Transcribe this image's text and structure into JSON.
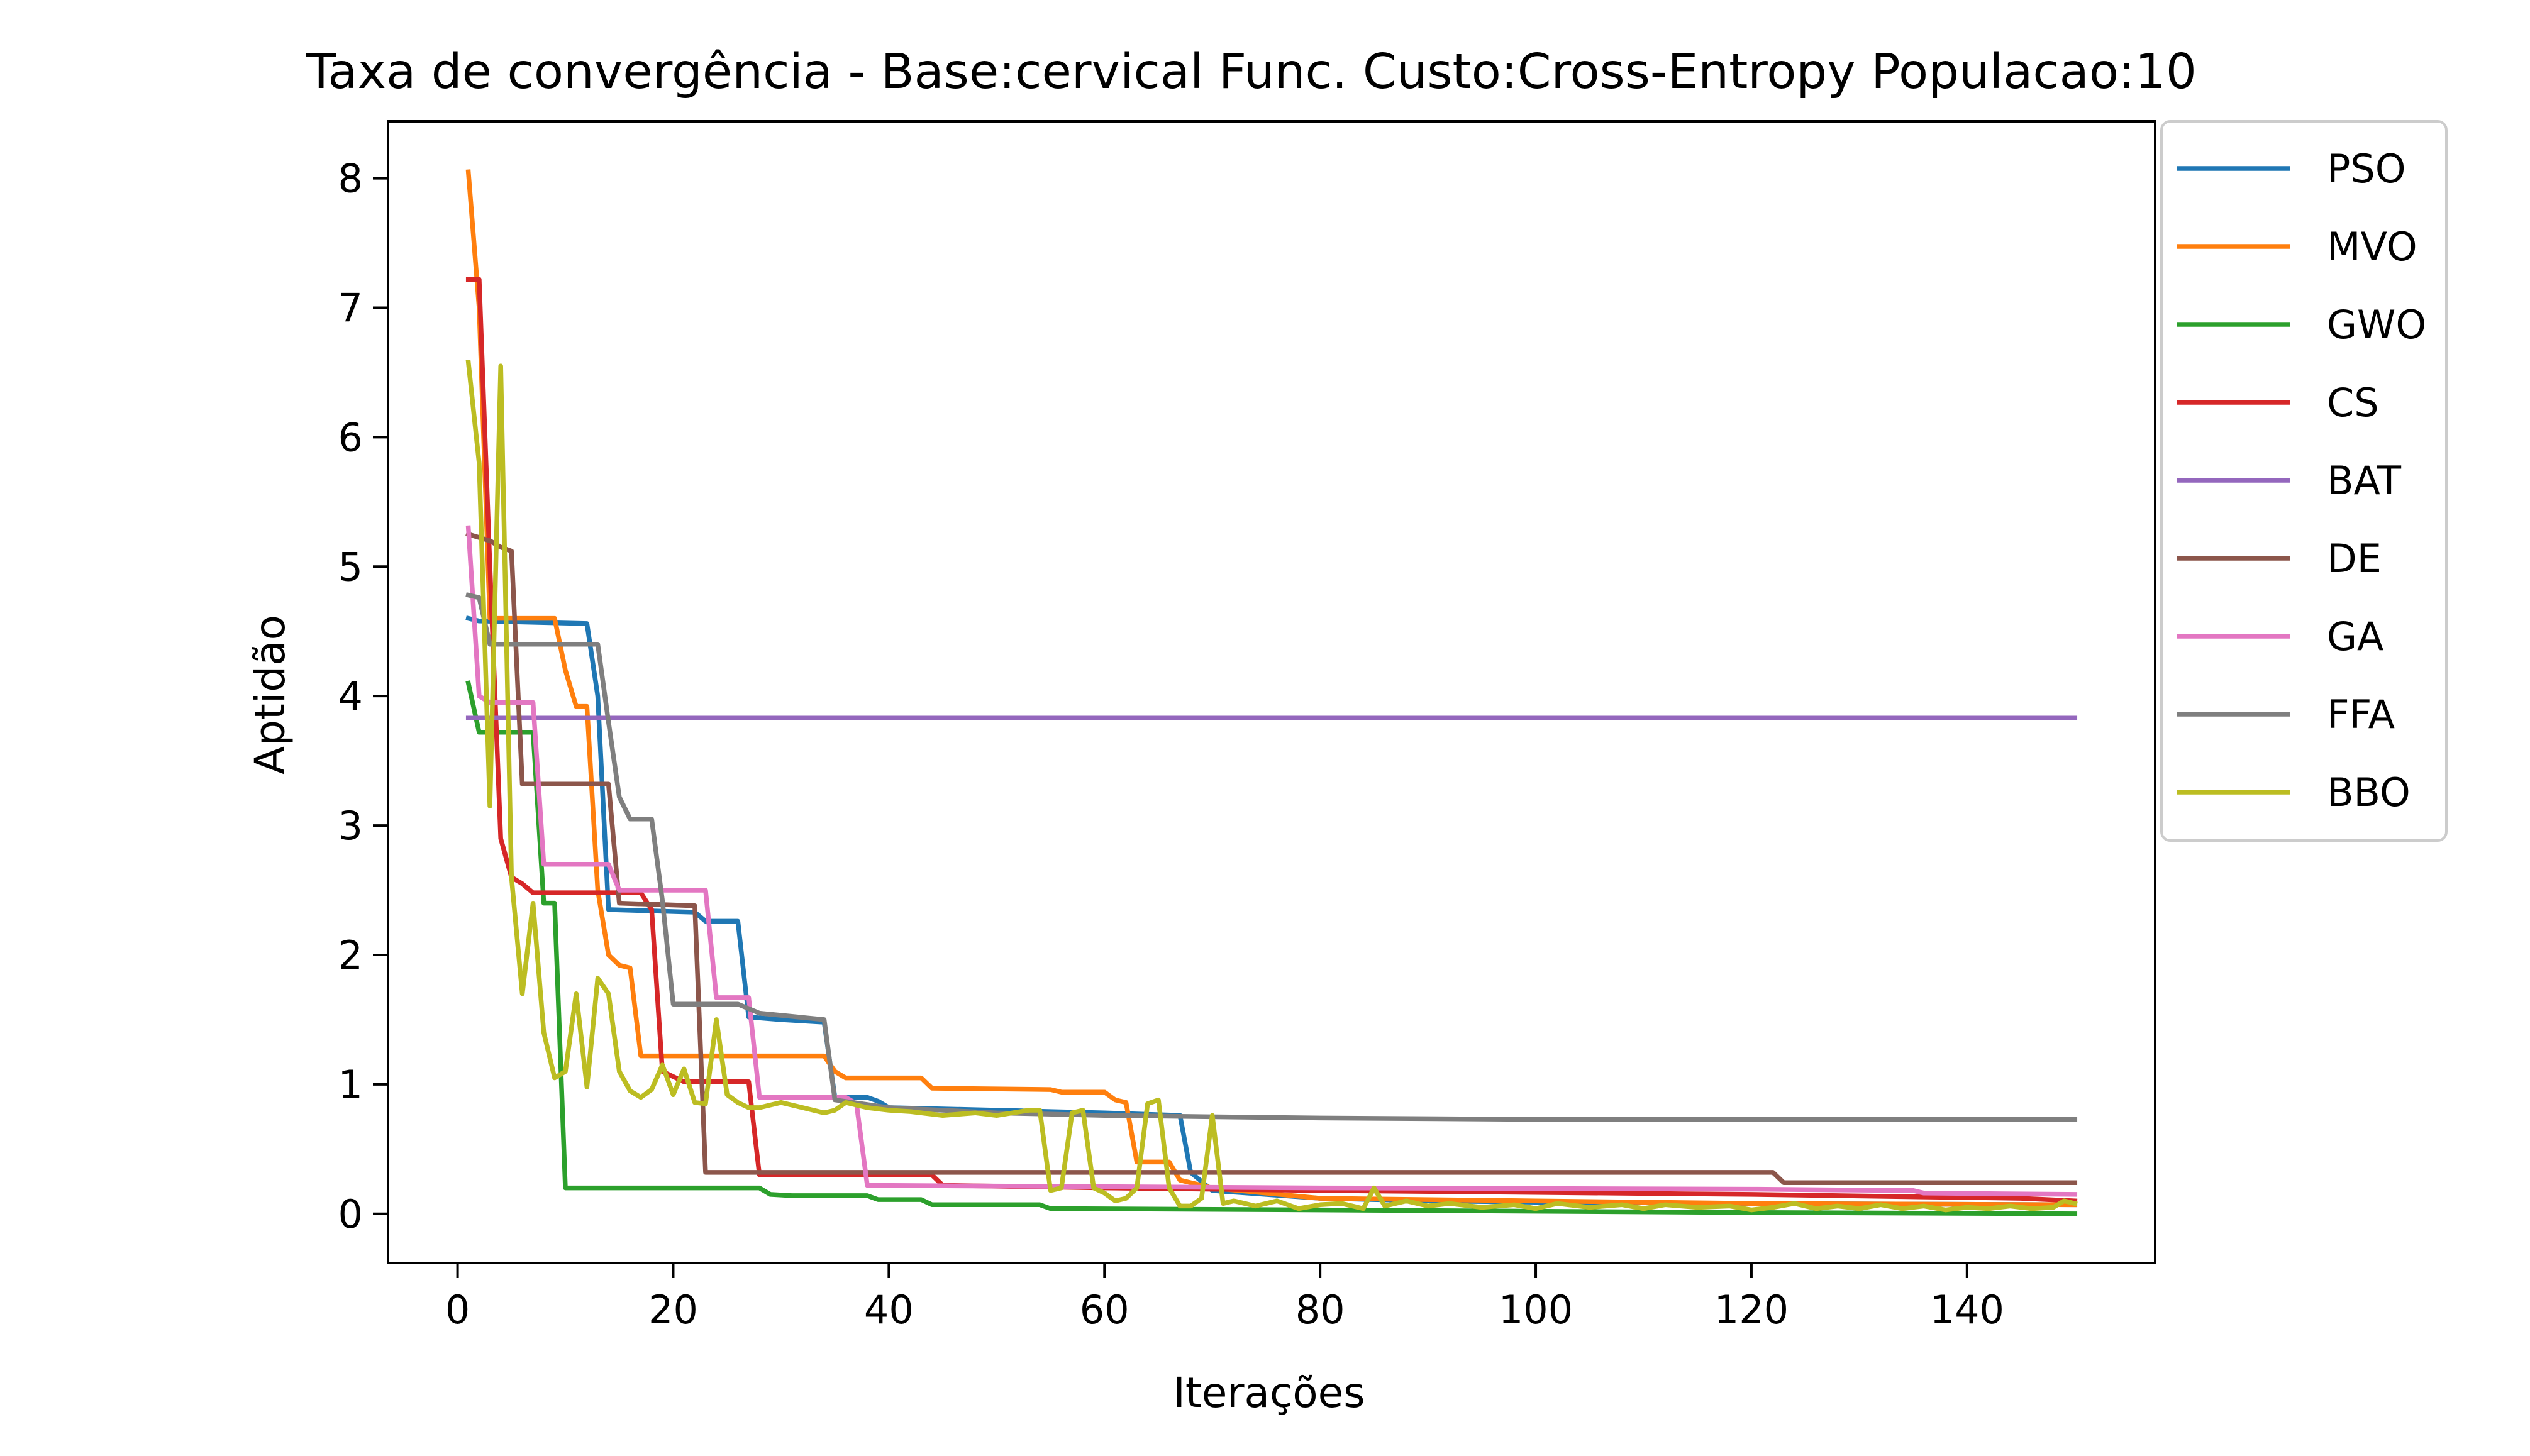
{
  "chart_data": {
    "type": "line",
    "title": "Taxa de convergência - Base:cervical Func. Custo:Cross-Entropy Populacao:10",
    "xlabel": "Iterações",
    "ylabel": "Aptidão",
    "xlim": [
      -6.45,
      157.45
    ],
    "ylim": [
      -0.38,
      8.44
    ],
    "xticks": [
      0,
      20,
      40,
      60,
      80,
      100,
      120,
      140
    ],
    "yticks": [
      0,
      1,
      2,
      3,
      4,
      5,
      6,
      7,
      8
    ],
    "xtick_labels": [
      "0",
      "20",
      "40",
      "60",
      "80",
      "100",
      "120",
      "140"
    ],
    "ytick_labels": [
      "0",
      "1",
      "2",
      "3",
      "4",
      "5",
      "6",
      "7",
      "8"
    ],
    "grid": false,
    "legend_position": "outside-top-right",
    "series": [
      {
        "name": "PSO",
        "color": "#1f77b4",
        "points": [
          [
            1,
            4.6
          ],
          [
            2,
            4.58
          ],
          [
            12,
            4.56
          ],
          [
            13,
            4.0
          ],
          [
            14,
            2.35
          ],
          [
            22,
            2.33
          ],
          [
            23,
            2.26
          ],
          [
            26,
            2.26
          ],
          [
            27,
            1.52
          ],
          [
            30,
            1.5
          ],
          [
            34,
            1.48
          ],
          [
            35,
            0.9
          ],
          [
            38,
            0.9
          ],
          [
            39,
            0.87
          ],
          [
            40,
            0.82
          ],
          [
            50,
            0.8
          ],
          [
            60,
            0.78
          ],
          [
            67,
            0.76
          ],
          [
            68,
            0.32
          ],
          [
            70,
            0.18
          ],
          [
            80,
            0.12
          ],
          [
            90,
            0.1
          ],
          [
            100,
            0.09
          ],
          [
            120,
            0.08
          ],
          [
            150,
            0.07
          ]
        ]
      },
      {
        "name": "MVO",
        "color": "#ff7f0e",
        "points": [
          [
            1,
            8.05
          ],
          [
            2,
            7.0
          ],
          [
            3,
            4.6
          ],
          [
            9,
            4.6
          ],
          [
            10,
            4.2
          ],
          [
            11,
            3.92
          ],
          [
            12,
            3.92
          ],
          [
            13,
            2.5
          ],
          [
            14,
            2.0
          ],
          [
            15,
            1.92
          ],
          [
            16,
            1.9
          ],
          [
            17,
            1.22
          ],
          [
            20,
            1.22
          ],
          [
            30,
            1.22
          ],
          [
            34,
            1.22
          ],
          [
            35,
            1.1
          ],
          [
            36,
            1.05
          ],
          [
            43,
            1.05
          ],
          [
            44,
            0.97
          ],
          [
            55,
            0.96
          ],
          [
            56,
            0.94
          ],
          [
            60,
            0.94
          ],
          [
            61,
            0.88
          ],
          [
            62,
            0.86
          ],
          [
            63,
            0.4
          ],
          [
            66,
            0.4
          ],
          [
            67,
            0.26
          ],
          [
            70,
            0.2
          ],
          [
            80,
            0.12
          ],
          [
            100,
            0.1
          ],
          [
            120,
            0.08
          ],
          [
            150,
            0.07
          ]
        ]
      },
      {
        "name": "GWO",
        "color": "#2ca02c",
        "points": [
          [
            1,
            4.1
          ],
          [
            2,
            3.72
          ],
          [
            7,
            3.72
          ],
          [
            8,
            2.4
          ],
          [
            9,
            2.4
          ],
          [
            10,
            0.2
          ],
          [
            28,
            0.2
          ],
          [
            29,
            0.15
          ],
          [
            31,
            0.14
          ],
          [
            38,
            0.14
          ],
          [
            39,
            0.11
          ],
          [
            43,
            0.11
          ],
          [
            44,
            0.07
          ],
          [
            54,
            0.07
          ],
          [
            55,
            0.04
          ],
          [
            80,
            0.03
          ],
          [
            120,
            0.01
          ],
          [
            150,
            0.0
          ]
        ]
      },
      {
        "name": "CS",
        "color": "#d62728",
        "points": [
          [
            1,
            7.22
          ],
          [
            2,
            7.22
          ],
          [
            3,
            5.0
          ],
          [
            4,
            2.9
          ],
          [
            5,
            2.6
          ],
          [
            6,
            2.55
          ],
          [
            7,
            2.48
          ],
          [
            17,
            2.48
          ],
          [
            18,
            2.35
          ],
          [
            19,
            1.1
          ],
          [
            21,
            1.02
          ],
          [
            27,
            1.02
          ],
          [
            28,
            0.3
          ],
          [
            35,
            0.3
          ],
          [
            36,
            0.3
          ],
          [
            44,
            0.3
          ],
          [
            45,
            0.22
          ],
          [
            60,
            0.2
          ],
          [
            80,
            0.18
          ],
          [
            120,
            0.15
          ],
          [
            145,
            0.12
          ],
          [
            150,
            0.1
          ]
        ]
      },
      {
        "name": "BAT",
        "color": "#9467bd",
        "points": [
          [
            1,
            3.83
          ],
          [
            150,
            3.83
          ]
        ]
      },
      {
        "name": "DE",
        "color": "#8c564b",
        "points": [
          [
            1,
            5.25
          ],
          [
            3,
            5.2
          ],
          [
            4,
            5.15
          ],
          [
            5,
            5.12
          ],
          [
            6,
            3.32
          ],
          [
            14,
            3.32
          ],
          [
            15,
            2.4
          ],
          [
            22,
            2.38
          ],
          [
            23,
            0.32
          ],
          [
            80,
            0.32
          ],
          [
            122,
            0.32
          ],
          [
            123,
            0.24
          ],
          [
            150,
            0.24
          ]
        ]
      },
      {
        "name": "GA",
        "color": "#e377c2",
        "points": [
          [
            1,
            5.3
          ],
          [
            2,
            4.0
          ],
          [
            3,
            3.95
          ],
          [
            7,
            3.95
          ],
          [
            8,
            2.7
          ],
          [
            14,
            2.7
          ],
          [
            15,
            2.5
          ],
          [
            23,
            2.5
          ],
          [
            24,
            1.67
          ],
          [
            27,
            1.67
          ],
          [
            28,
            0.9
          ],
          [
            36,
            0.9
          ],
          [
            37,
            0.85
          ],
          [
            38,
            0.22
          ],
          [
            80,
            0.2
          ],
          [
            120,
            0.19
          ],
          [
            135,
            0.18
          ],
          [
            136,
            0.16
          ],
          [
            150,
            0.15
          ]
        ]
      },
      {
        "name": "FFA",
        "color": "#7f7f7f",
        "points": [
          [
            1,
            4.78
          ],
          [
            2,
            4.76
          ],
          [
            3,
            4.4
          ],
          [
            13,
            4.4
          ],
          [
            14,
            3.8
          ],
          [
            15,
            3.22
          ],
          [
            16,
            3.05
          ],
          [
            18,
            3.05
          ],
          [
            19,
            2.42
          ],
          [
            20,
            1.62
          ],
          [
            26,
            1.62
          ],
          [
            28,
            1.55
          ],
          [
            34,
            1.5
          ],
          [
            35,
            0.88
          ],
          [
            40,
            0.82
          ],
          [
            50,
            0.78
          ],
          [
            60,
            0.76
          ],
          [
            80,
            0.74
          ],
          [
            100,
            0.73
          ],
          [
            150,
            0.73
          ]
        ]
      },
      {
        "name": "BBO",
        "color": "#bcbd22",
        "points": [
          [
            1,
            6.58
          ],
          [
            2,
            5.8
          ],
          [
            3,
            3.15
          ],
          [
            4,
            6.55
          ],
          [
            5,
            2.6
          ],
          [
            6,
            1.7
          ],
          [
            7,
            2.4
          ],
          [
            8,
            1.4
          ],
          [
            9,
            1.05
          ],
          [
            10,
            1.1
          ],
          [
            11,
            1.7
          ],
          [
            12,
            0.98
          ],
          [
            13,
            1.82
          ],
          [
            14,
            1.7
          ],
          [
            15,
            1.1
          ],
          [
            16,
            0.95
          ],
          [
            17,
            0.9
          ],
          [
            18,
            0.96
          ],
          [
            19,
            1.15
          ],
          [
            20,
            0.92
          ],
          [
            21,
            1.12
          ],
          [
            22,
            0.86
          ],
          [
            23,
            0.85
          ],
          [
            24,
            1.5
          ],
          [
            25,
            0.92
          ],
          [
            26,
            0.86
          ],
          [
            27,
            0.82
          ],
          [
            28,
            0.82
          ],
          [
            30,
            0.86
          ],
          [
            32,
            0.82
          ],
          [
            34,
            0.78
          ],
          [
            35,
            0.8
          ],
          [
            36,
            0.86
          ],
          [
            38,
            0.82
          ],
          [
            40,
            0.8
          ],
          [
            42,
            0.79
          ],
          [
            45,
            0.76
          ],
          [
            48,
            0.78
          ],
          [
            50,
            0.76
          ],
          [
            53,
            0.8
          ],
          [
            54,
            0.8
          ],
          [
            55,
            0.18
          ],
          [
            56,
            0.2
          ],
          [
            57,
            0.78
          ],
          [
            58,
            0.8
          ],
          [
            59,
            0.2
          ],
          [
            60,
            0.16
          ],
          [
            61,
            0.1
          ],
          [
            62,
            0.12
          ],
          [
            63,
            0.2
          ],
          [
            64,
            0.85
          ],
          [
            65,
            0.88
          ],
          [
            66,
            0.2
          ],
          [
            67,
            0.06
          ],
          [
            68,
            0.06
          ],
          [
            69,
            0.12
          ],
          [
            70,
            0.76
          ],
          [
            71,
            0.08
          ],
          [
            72,
            0.1
          ],
          [
            74,
            0.06
          ],
          [
            76,
            0.1
          ],
          [
            78,
            0.04
          ],
          [
            80,
            0.07
          ],
          [
            82,
            0.08
          ],
          [
            84,
            0.04
          ],
          [
            85,
            0.2
          ],
          [
            86,
            0.06
          ],
          [
            88,
            0.1
          ],
          [
            90,
            0.06
          ],
          [
            92,
            0.08
          ],
          [
            95,
            0.05
          ],
          [
            98,
            0.07
          ],
          [
            100,
            0.04
          ],
          [
            102,
            0.08
          ],
          [
            105,
            0.05
          ],
          [
            108,
            0.07
          ],
          [
            110,
            0.04
          ],
          [
            112,
            0.07
          ],
          [
            115,
            0.05
          ],
          [
            118,
            0.06
          ],
          [
            120,
            0.03
          ],
          [
            122,
            0.05
          ],
          [
            124,
            0.08
          ],
          [
            126,
            0.04
          ],
          [
            128,
            0.06
          ],
          [
            130,
            0.04
          ],
          [
            132,
            0.07
          ],
          [
            134,
            0.04
          ],
          [
            136,
            0.06
          ],
          [
            138,
            0.03
          ],
          [
            140,
            0.05
          ],
          [
            142,
            0.04
          ],
          [
            144,
            0.06
          ],
          [
            146,
            0.04
          ],
          [
            148,
            0.05
          ],
          [
            149,
            0.1
          ],
          [
            150,
            0.08
          ]
        ]
      }
    ]
  }
}
